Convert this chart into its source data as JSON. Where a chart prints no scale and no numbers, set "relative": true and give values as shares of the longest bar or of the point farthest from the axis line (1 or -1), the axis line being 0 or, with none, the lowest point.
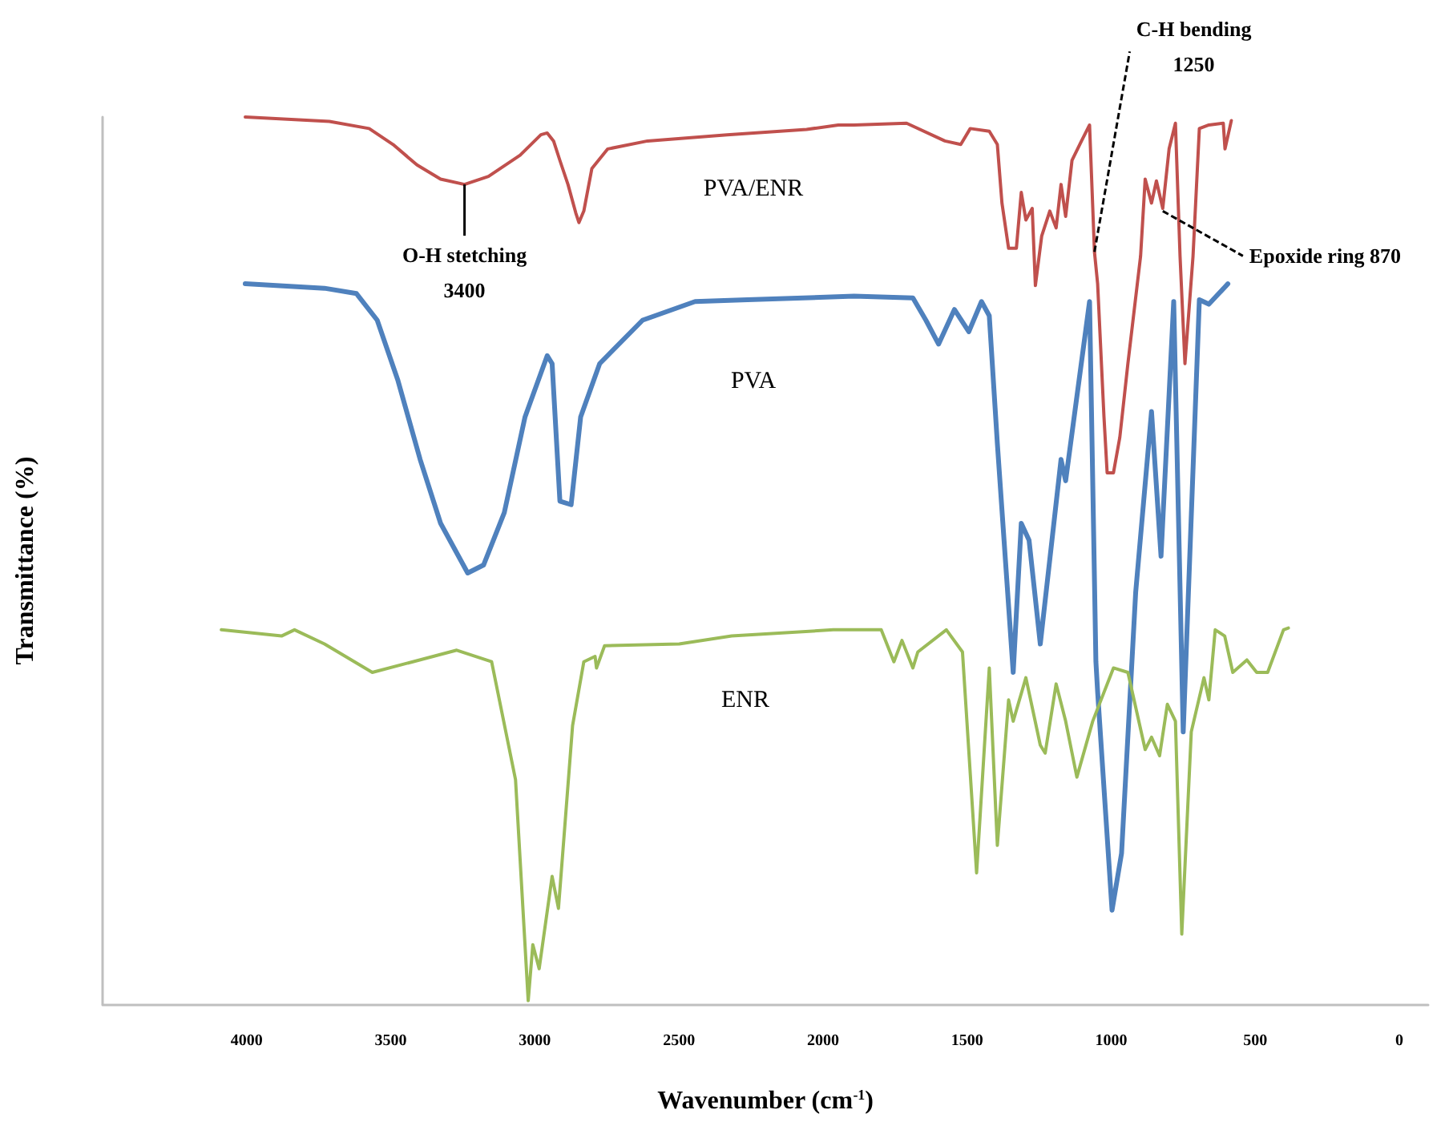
{
  "chart_data": {
    "type": "line",
    "relative": true,
    "xlabel": "Wavenumber (cm$^{-1}$)",
    "ylabel": "Transmittance (%)",
    "xlim": [
      4500,
      -100
    ],
    "xticks": [
      4000,
      3500,
      3000,
      2500,
      2000,
      1500,
      1000,
      500,
      0
    ],
    "grid": false,
    "legend": false,
    "marker": "none",
    "line_style": "solid",
    "annotations": [
      {
        "text": "O-H stetching 3400",
        "x": 3244,
        "y": 0.924
      },
      {
        "text": "C-H bending 1250",
        "x": 1058,
        "y": 0.848
      },
      {
        "text": "Epoxide ring 870",
        "x": 821,
        "y": 0.894
      }
    ],
    "series": [
      {
        "name": "PVA/ENR",
        "color": "#c0504d",
        "x": [
          4005,
          3713,
          3575,
          3492,
          3409,
          3327,
          3244,
          3161,
          3051,
          2979,
          2957,
          2935,
          2913,
          2885,
          2858,
          2847,
          2830,
          2802,
          2747,
          2609,
          2333,
          2057,
          1947,
          1892,
          1710,
          1577,
          1522,
          1489,
          1423,
          1395,
          1379,
          1356,
          1329,
          1312,
          1296,
          1274,
          1263,
          1241,
          1213,
          1191,
          1174,
          1158,
          1136,
          1103,
          1075,
          1058,
          1047,
          1025,
          1014,
          992,
          970,
          942,
          898,
          882,
          860,
          843,
          821,
          799,
          777,
          761,
          744,
          716,
          694,
          661,
          611,
          605,
          583
        ],
        "values": [
          1,
          0.995,
          0.987,
          0.969,
          0.946,
          0.93,
          0.924,
          0.933,
          0.957,
          0.98,
          0.982,
          0.973,
          0.951,
          0.924,
          0.892,
          0.881,
          0.894,
          0.942,
          0.964,
          0.973,
          0.98,
          0.986,
          0.991,
          0.991,
          0.993,
          0.973,
          0.969,
          0.987,
          0.984,
          0.969,
          0.903,
          0.852,
          0.852,
          0.915,
          0.884,
          0.897,
          0.81,
          0.866,
          0.894,
          0.875,
          0.924,
          0.888,
          0.951,
          0.973,
          0.991,
          0.848,
          0.812,
          0.662,
          0.599,
          0.599,
          0.639,
          0.722,
          0.843,
          0.93,
          0.903,
          0.928,
          0.897,
          0.964,
          0.993,
          0.843,
          0.722,
          0.843,
          0.987,
          0.991,
          0.993,
          0.964,
          0.996
        ]
      },
      {
        "name": "PVA",
        "color": "#4f81bd",
        "x": [
          4005,
          3730,
          3619,
          3547,
          3476,
          3398,
          3327,
          3233,
          3178,
          3106,
          3034,
          2957,
          2940,
          2913,
          2874,
          2841,
          2775,
          2626,
          2444,
          2262,
          1892,
          1688,
          1643,
          1599,
          1544,
          1494,
          1450,
          1423,
          1395,
          1340,
          1312,
          1285,
          1246,
          1174,
          1158,
          1075,
          1053,
          1047,
          997,
          964,
          915,
          860,
          827,
          783,
          750,
          694,
          661,
          595
        ],
        "values": [
          0.812,
          0.807,
          0.801,
          0.771,
          0.704,
          0.614,
          0.542,
          0.486,
          0.495,
          0.554,
          0.662,
          0.731,
          0.722,
          0.567,
          0.563,
          0.662,
          0.722,
          0.771,
          0.792,
          0.794,
          0.798,
          0.796,
          0.771,
          0.744,
          0.783,
          0.758,
          0.792,
          0.776,
          0.632,
          0.374,
          0.542,
          0.523,
          0.406,
          0.614,
          0.59,
          0.792,
          0.386,
          0.352,
          0.106,
          0.17,
          0.464,
          0.668,
          0.505,
          0.792,
          0.307,
          0.794,
          0.789,
          0.812
        ]
      },
      {
        "name": "ENR",
        "color": "#9bbb59",
        "x": [
          4088,
          3879,
          3834,
          3730,
          3564,
          3271,
          3150,
          3067,
          3023,
          3007,
          2985,
          2940,
          2918,
          2869,
          2830,
          2791,
          2786,
          2758,
          2499,
          2317,
          1964,
          1947,
          1798,
          1754,
          1726,
          1688,
          1671,
          1572,
          1516,
          1467,
          1423,
          1395,
          1356,
          1340,
          1296,
          1246,
          1229,
          1191,
          1158,
          1119,
          1064,
          992,
          942,
          882,
          860,
          832,
          805,
          777,
          755,
          722,
          678,
          661,
          639,
          606,
          578,
          529,
          495,
          457,
          402,
          385
        ],
        "values": [
          0.422,
          0.415,
          0.422,
          0.406,
          0.374,
          0.399,
          0.386,
          0.253,
          0.004,
          0.067,
          0.04,
          0.144,
          0.108,
          0.314,
          0.386,
          0.392,
          0.379,
          0.404,
          0.406,
          0.415,
          0.422,
          0.422,
          0.422,
          0.386,
          0.41,
          0.379,
          0.397,
          0.422,
          0.397,
          0.148,
          0.379,
          0.179,
          0.343,
          0.319,
          0.368,
          0.292,
          0.283,
          0.361,
          0.319,
          0.256,
          0.319,
          0.379,
          0.374,
          0.287,
          0.301,
          0.28,
          0.338,
          0.319,
          0.079,
          0.307,
          0.368,
          0.343,
          0.422,
          0.415,
          0.374,
          0.388,
          0.374,
          0.374,
          0.422,
          0.424
        ]
      }
    ]
  }
}
